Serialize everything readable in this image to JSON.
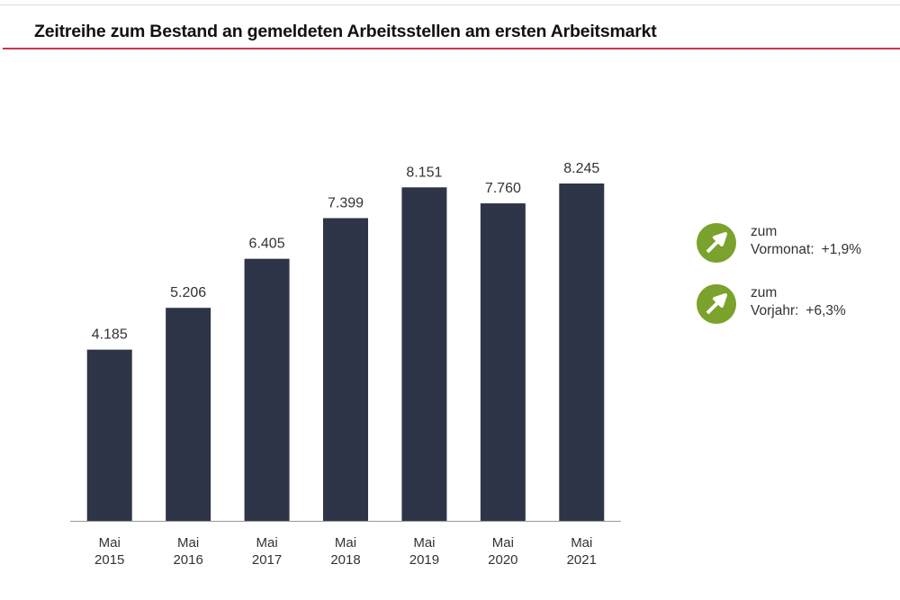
{
  "title": "Zeitreihe zum Bestand an gemeldeten Arbeitsstellen am ersten Arbeitsmarkt",
  "chart_data": {
    "type": "bar",
    "title": "Zeitreihe zum Bestand an gemeldeten Arbeitsstellen am ersten Arbeitsmarkt",
    "categories": [
      [
        "Mai",
        "2015"
      ],
      [
        "Mai",
        "2016"
      ],
      [
        "Mai",
        "2017"
      ],
      [
        "Mai",
        "2018"
      ],
      [
        "Mai",
        "2019"
      ],
      [
        "Mai",
        "2020"
      ],
      [
        "Mai",
        "2021"
      ]
    ],
    "values": [
      4185,
      5206,
      6405,
      7399,
      8151,
      7760,
      8245
    ],
    "labels": [
      "4.185",
      "5.206",
      "6.405",
      "7.399",
      "8.151",
      "7.760",
      "8.245"
    ],
    "xlabel": "",
    "ylabel": "",
    "ylim": [
      0,
      8245
    ],
    "grid": false,
    "bar_color": "#2e3548"
  },
  "indicators": [
    {
      "icon": "arrow-up-right-icon",
      "line1": "zum",
      "label": "Vormonat:",
      "value": "+1,9%",
      "color": "#7aa22c"
    },
    {
      "icon": "arrow-up-right-icon",
      "line1": "zum",
      "label": "Vorjahr:",
      "value": "+6,3%",
      "color": "#7aa22c"
    }
  ]
}
